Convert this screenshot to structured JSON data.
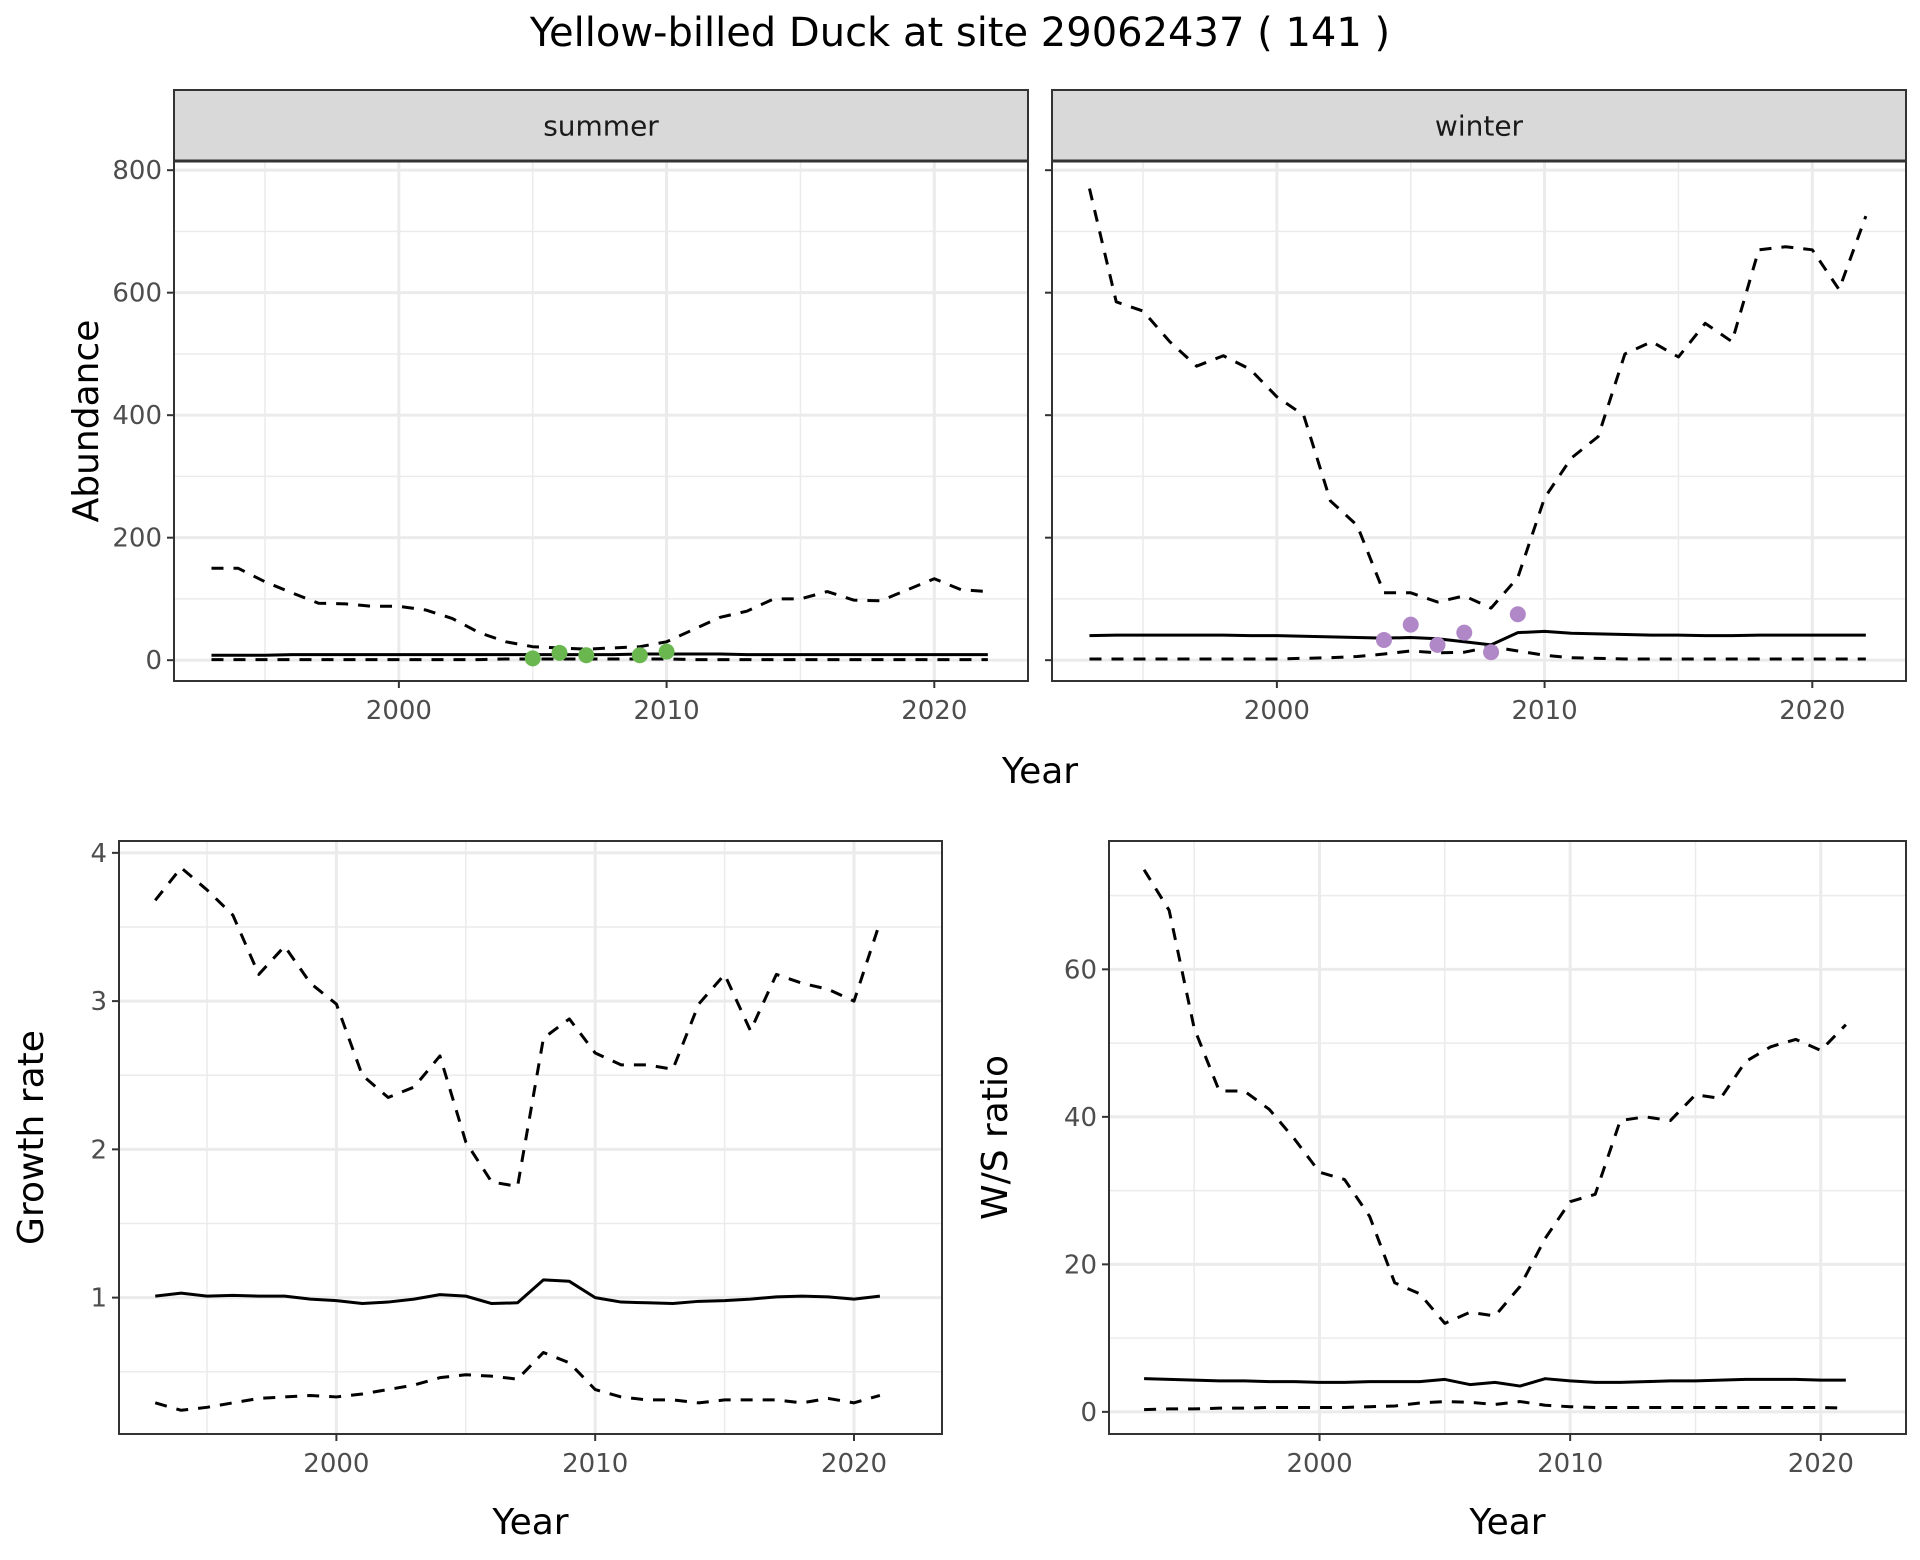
{
  "title": "Yellow-billed Duck at site 29062437 ( 141 )",
  "colors": {
    "summer_points": "#6ab750",
    "winter_points": "#b088c8",
    "grid": "#ebebeb",
    "strip": "#d9d9d9"
  },
  "chart_data": [
    {
      "id": "summer",
      "type": "line",
      "strip": "summer",
      "xlabel": "Year",
      "ylabel": "Abundance",
      "xlim": [
        1991.6,
        2023.5
      ],
      "ylim": [
        -34,
        815
      ],
      "xticks": [
        2000,
        2010,
        2020
      ],
      "yticks": [
        0,
        200,
        400,
        600,
        800
      ],
      "x": [
        1993,
        1994,
        1995,
        1996,
        1997,
        1998,
        1999,
        2000,
        2001,
        2002,
        2003,
        2004,
        2005,
        2006,
        2007,
        2008,
        2009,
        2010,
        2011,
        2012,
        2013,
        2014,
        2015,
        2016,
        2017,
        2018,
        2019,
        2020,
        2021,
        2022
      ],
      "series": [
        {
          "name": "upper",
          "style": "dashed",
          "values": [
            150,
            150,
            128,
            110,
            93,
            92,
            88,
            88,
            82,
            68,
            45,
            30,
            22,
            20,
            18,
            20,
            22,
            30,
            50,
            70,
            80,
            100,
            100,
            112,
            98,
            97,
            115,
            133,
            115,
            112
          ]
        },
        {
          "name": "mean",
          "style": "solid",
          "values": [
            8,
            8,
            8,
            9,
            9,
            9,
            9,
            9,
            9,
            9,
            9,
            9,
            9,
            9,
            9,
            9,
            10,
            10,
            10,
            10,
            9,
            9,
            9,
            9,
            9,
            9,
            9,
            9,
            9,
            9
          ]
        },
        {
          "name": "lower",
          "style": "dashed",
          "values": [
            1,
            1,
            1,
            1,
            1,
            1,
            1,
            1,
            1,
            1,
            1,
            2,
            2,
            2,
            2,
            2,
            2,
            2,
            1,
            1,
            1,
            1,
            1,
            1,
            1,
            1,
            1,
            1,
            1,
            1
          ]
        }
      ],
      "points": {
        "x": [
          2005,
          2006,
          2007,
          2009,
          2010
        ],
        "y": [
          3,
          12,
          8,
          8,
          14
        ]
      }
    },
    {
      "id": "winter",
      "type": "line",
      "strip": "winter",
      "xlabel": "Year",
      "ylabel": "",
      "xlim": [
        1991.6,
        2023.5
      ],
      "ylim": [
        -34,
        815
      ],
      "xticks": [
        2000,
        2010,
        2020
      ],
      "yticks": [
        0,
        200,
        400,
        600,
        800
      ],
      "x": [
        1993,
        1994,
        1995,
        1996,
        1997,
        1998,
        1999,
        2000,
        2001,
        2002,
        2003,
        2004,
        2005,
        2006,
        2007,
        2008,
        2009,
        2010,
        2011,
        2012,
        2013,
        2014,
        2015,
        2016,
        2017,
        2018,
        2019,
        2020,
        2021,
        2022
      ],
      "series": [
        {
          "name": "upper",
          "style": "dashed",
          "values": [
            770,
            585,
            570,
            520,
            480,
            497,
            475,
            430,
            400,
            260,
            220,
            110,
            110,
            95,
            105,
            85,
            135,
            265,
            330,
            365,
            500,
            520,
            495,
            550,
            520,
            670,
            675,
            670,
            605,
            725
          ]
        },
        {
          "name": "mean",
          "style": "solid",
          "values": [
            40,
            41,
            41,
            41,
            41,
            41,
            40,
            40,
            39,
            38,
            37,
            36,
            37,
            35,
            30,
            25,
            45,
            47,
            44,
            43,
            42,
            41,
            41,
            40,
            40,
            41,
            41,
            41,
            41,
            41
          ]
        },
        {
          "name": "lower",
          "style": "dashed",
          "values": [
            2,
            2,
            2,
            2,
            2,
            2,
            2,
            2,
            3,
            4,
            6,
            10,
            15,
            12,
            13,
            22,
            15,
            8,
            4,
            3,
            2,
            2,
            2,
            2,
            2,
            2,
            2,
            2,
            2,
            2
          ]
        }
      ],
      "points": {
        "x": [
          2004,
          2005,
          2006,
          2007,
          2008,
          2009
        ],
        "y": [
          33,
          58,
          25,
          45,
          13,
          75
        ]
      }
    },
    {
      "id": "growth",
      "type": "line",
      "xlabel": "Year",
      "ylabel": "Growth rate",
      "xlim": [
        1991.6,
        2023.4
      ],
      "ylim": [
        0.08,
        4.08
      ],
      "xticks": [
        2000,
        2010,
        2020
      ],
      "yticks": [
        1,
        2,
        3,
        4
      ],
      "x": [
        1993,
        1994,
        1995,
        1996,
        1997,
        1998,
        1999,
        2000,
        2001,
        2002,
        2003,
        2004,
        2005,
        2006,
        2007,
        2008,
        2009,
        2010,
        2011,
        2012,
        2013,
        2014,
        2015,
        2016,
        2017,
        2018,
        2019,
        2020,
        2021
      ],
      "series": [
        {
          "name": "upper",
          "style": "dashed",
          "values": [
            3.68,
            3.9,
            3.75,
            3.58,
            3.18,
            3.37,
            3.12,
            2.98,
            2.5,
            2.35,
            2.42,
            2.63,
            2.05,
            1.78,
            1.75,
            2.75,
            2.88,
            2.65,
            2.57,
            2.57,
            2.54,
            2.98,
            3.18,
            2.8,
            3.18,
            3.12,
            3.08,
            3.0,
            3.53
          ]
        },
        {
          "name": "mean",
          "style": "solid",
          "values": [
            1.01,
            1.03,
            1.01,
            1.015,
            1.01,
            1.01,
            0.99,
            0.98,
            0.96,
            0.97,
            0.99,
            1.02,
            1.01,
            0.96,
            0.965,
            1.12,
            1.11,
            1.0,
            0.97,
            0.965,
            0.96,
            0.975,
            0.98,
            0.99,
            1.005,
            1.01,
            1.005,
            0.99,
            1.01
          ]
        },
        {
          "name": "lower",
          "style": "dashed",
          "values": [
            0.29,
            0.24,
            0.26,
            0.29,
            0.32,
            0.33,
            0.34,
            0.33,
            0.35,
            0.38,
            0.41,
            0.46,
            0.48,
            0.47,
            0.45,
            0.63,
            0.56,
            0.38,
            0.33,
            0.31,
            0.31,
            0.29,
            0.31,
            0.31,
            0.31,
            0.29,
            0.32,
            0.29,
            0.34
          ]
        }
      ]
    },
    {
      "id": "ws",
      "type": "line",
      "xlabel": "Year",
      "ylabel": "W/S ratio",
      "xlim": [
        1991.6,
        2023.4
      ],
      "ylim": [
        -3,
        77.4
      ],
      "xticks": [
        2000,
        2010,
        2020
      ],
      "yticks": [
        0,
        20,
        40,
        60
      ],
      "x": [
        1993,
        1994,
        1995,
        1996,
        1997,
        1998,
        1999,
        2000,
        2001,
        2002,
        2003,
        2004,
        2005,
        2006,
        2007,
        2008,
        2009,
        2010,
        2011,
        2012,
        2013,
        2014,
        2015,
        2016,
        2017,
        2018,
        2019,
        2020,
        2021
      ],
      "series": [
        {
          "name": "upper",
          "style": "dashed",
          "values": [
            73.5,
            68,
            52,
            43.5,
            43.5,
            41,
            37,
            32.5,
            31.5,
            26.5,
            17.5,
            16,
            12,
            13.5,
            13,
            17,
            23.5,
            28.5,
            29.5,
            39.5,
            40,
            39.5,
            43,
            42.5,
            47.5,
            49.5,
            50.5,
            49,
            52.5
          ]
        },
        {
          "name": "mean",
          "style": "solid",
          "values": [
            4.5,
            4.4,
            4.3,
            4.2,
            4.2,
            4.1,
            4.1,
            4.0,
            4.0,
            4.1,
            4.1,
            4.1,
            4.4,
            3.7,
            4.0,
            3.5,
            4.5,
            4.2,
            4.0,
            4.0,
            4.1,
            4.2,
            4.2,
            4.3,
            4.4,
            4.4,
            4.4,
            4.3,
            4.3
          ]
        },
        {
          "name": "lower",
          "style": "dashed",
          "values": [
            0.3,
            0.4,
            0.4,
            0.5,
            0.5,
            0.6,
            0.6,
            0.6,
            0.6,
            0.7,
            0.8,
            1.2,
            1.4,
            1.3,
            1.0,
            1.4,
            0.9,
            0.7,
            0.6,
            0.6,
            0.6,
            0.6,
            0.6,
            0.6,
            0.6,
            0.6,
            0.6,
            0.6,
            0.5
          ]
        }
      ]
    }
  ]
}
